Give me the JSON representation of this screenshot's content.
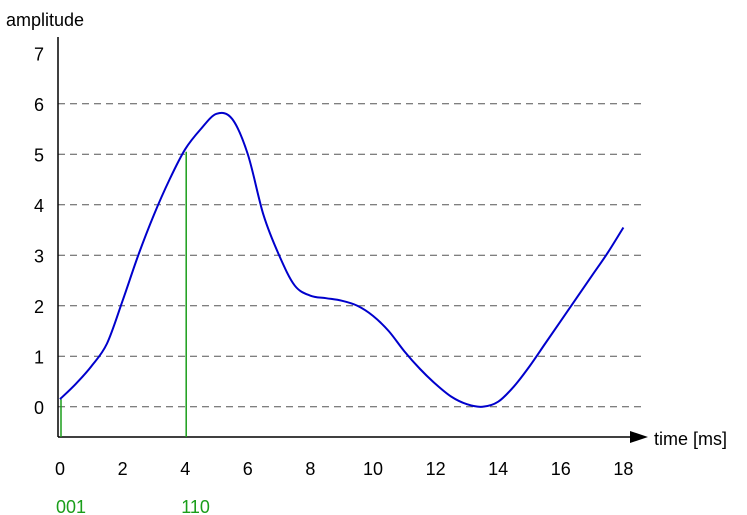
{
  "chart_data": {
    "type": "line",
    "xlabel": "time [ms]",
    "ylabel": "amplitude",
    "xlim": [
      0,
      18
    ],
    "ylim": [
      0,
      7
    ],
    "x_ticks": [
      0,
      2,
      4,
      6,
      8,
      10,
      12,
      14,
      16,
      18
    ],
    "y_ticks": [
      0,
      1,
      2,
      3,
      4,
      5,
      6,
      7
    ],
    "quantization_levels": [
      0.5,
      1.5,
      2.5,
      3.5,
      4.5,
      5.5,
      6.5
    ],
    "grid": "dashed horizontal lines at quantization levels",
    "series": [
      {
        "color": "#0000cc",
        "x": [
          0,
          0.5,
          1,
          1.5,
          2,
          2.5,
          3,
          3.5,
          4,
          4.5,
          5,
          5.5,
          6,
          6.5,
          7,
          7.5,
          8,
          8.5,
          9,
          9.5,
          10,
          10.5,
          11,
          11.5,
          12,
          12.5,
          13,
          13.5,
          14,
          14.5,
          15,
          15.5,
          16,
          16.5,
          17,
          17.5,
          18
        ],
        "y": [
          0.65,
          0.95,
          1.3,
          1.75,
          2.6,
          3.5,
          4.3,
          5.0,
          5.6,
          6.0,
          6.3,
          6.2,
          5.5,
          4.3,
          3.5,
          2.9,
          2.7,
          2.65,
          2.6,
          2.5,
          2.3,
          2.0,
          1.6,
          1.25,
          0.95,
          0.7,
          0.55,
          0.5,
          0.6,
          0.9,
          1.3,
          1.75,
          2.2,
          2.65,
          3.1,
          3.55,
          4.05
        ]
      }
    ],
    "samples": [
      {
        "x": 0,
        "y": 0.65,
        "code": "001",
        "color": "#1a9e1a"
      },
      {
        "x": 4,
        "y": 5.55,
        "code": "110",
        "color": "#1a9e1a"
      }
    ]
  }
}
